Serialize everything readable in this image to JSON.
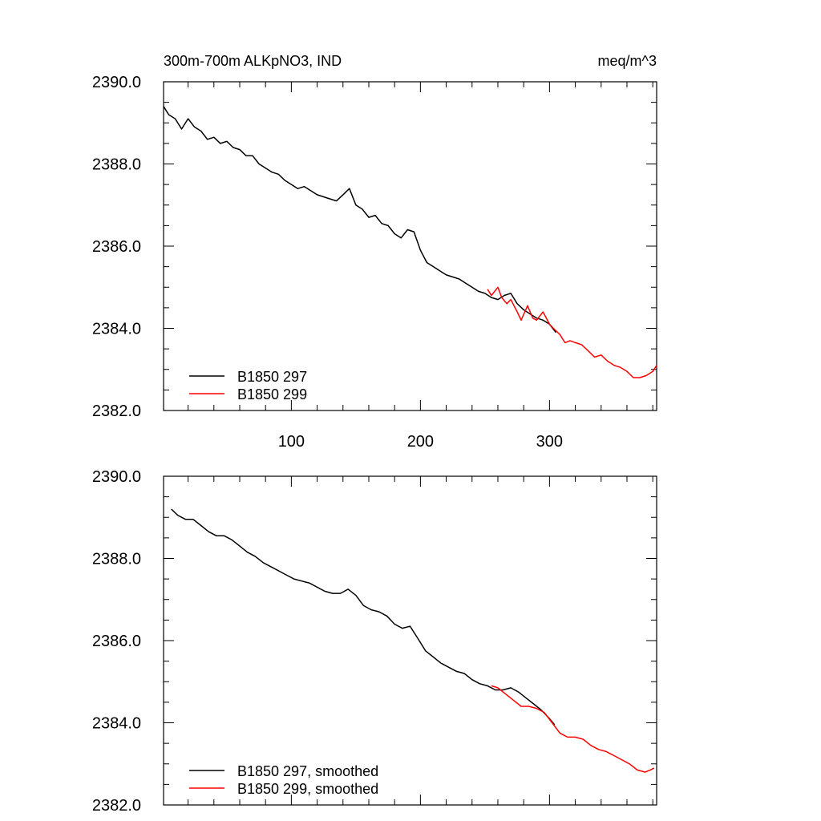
{
  "chart_data": [
    {
      "type": "line",
      "title": "300m-700m ALKpNO3, IND",
      "units": "meq/m^3",
      "xlim": [
        1,
        383
      ],
      "ylim": [
        2382,
        2390
      ],
      "xticks": [
        100,
        200,
        300
      ],
      "xtick_labels": [
        "100",
        "200",
        "300"
      ],
      "yticks": [
        2382,
        2384,
        2386,
        2388,
        2390
      ],
      "ytick_labels": [
        "2382.0",
        "2384.0",
        "2386.0",
        "2388.0",
        "2390.0"
      ],
      "legend_position": "bottom-left",
      "series": [
        {
          "name": "B1850 297",
          "color": "#000000",
          "x": [
            1,
            5,
            10,
            15,
            20,
            25,
            30,
            35,
            40,
            45,
            50,
            55,
            60,
            65,
            70,
            75,
            80,
            85,
            90,
            95,
            100,
            105,
            110,
            115,
            120,
            125,
            130,
            135,
            140,
            145,
            150,
            155,
            160,
            165,
            170,
            175,
            180,
            185,
            190,
            195,
            200,
            205,
            210,
            215,
            220,
            225,
            230,
            235,
            240,
            245,
            250,
            255,
            260,
            265,
            270,
            275,
            280,
            285,
            290,
            295,
            300,
            305
          ],
          "values": [
            2389.4,
            2389.2,
            2389.1,
            2388.85,
            2389.1,
            2388.9,
            2388.8,
            2388.6,
            2388.65,
            2388.5,
            2388.55,
            2388.4,
            2388.35,
            2388.2,
            2388.2,
            2388.0,
            2387.9,
            2387.8,
            2387.75,
            2387.6,
            2387.5,
            2387.4,
            2387.45,
            2387.35,
            2387.25,
            2387.2,
            2387.15,
            2387.1,
            2387.25,
            2387.4,
            2387.0,
            2386.9,
            2386.7,
            2386.75,
            2386.55,
            2386.5,
            2386.3,
            2386.2,
            2386.4,
            2386.35,
            2385.9,
            2385.6,
            2385.5,
            2385.4,
            2385.3,
            2385.25,
            2385.2,
            2385.1,
            2385.0,
            2384.9,
            2384.85,
            2384.75,
            2384.7,
            2384.8,
            2384.85,
            2384.6,
            2384.45,
            2384.35,
            2384.25,
            2384.2,
            2384.1,
            2383.9
          ]
        },
        {
          "name": "B1850 299",
          "color": "#ff0000",
          "x": [
            252,
            255,
            260,
            263,
            267,
            270,
            275,
            278,
            283,
            287,
            290,
            295,
            300,
            303,
            308,
            312,
            316,
            320,
            325,
            330,
            335,
            340,
            345,
            350,
            355,
            360,
            365,
            370,
            375,
            380,
            383
          ],
          "values": [
            2384.95,
            2384.8,
            2385.0,
            2384.75,
            2384.6,
            2384.7,
            2384.4,
            2384.2,
            2384.55,
            2384.25,
            2384.2,
            2384.4,
            2384.1,
            2384.0,
            2383.85,
            2383.65,
            2383.7,
            2383.65,
            2383.6,
            2383.45,
            2383.3,
            2383.35,
            2383.2,
            2383.1,
            2383.05,
            2382.95,
            2382.8,
            2382.8,
            2382.85,
            2382.95,
            2383.1
          ]
        }
      ]
    },
    {
      "type": "line",
      "title": "",
      "xlim": [
        1,
        383
      ],
      "ylim": [
        2382,
        2390
      ],
      "xticks": [
        100,
        200,
        300
      ],
      "xtick_labels": [],
      "yticks": [
        2382,
        2384,
        2386,
        2388,
        2390
      ],
      "ytick_labels": [
        "2382.0",
        "2384.0",
        "2386.0",
        "2388.0",
        "2390.0"
      ],
      "legend_position": "bottom-left",
      "series": [
        {
          "name": "B1850 297, smoothed",
          "color": "#000000",
          "x": [
            7,
            12,
            18,
            24,
            30,
            36,
            42,
            48,
            54,
            60,
            66,
            72,
            78,
            84,
            90,
            96,
            102,
            108,
            114,
            120,
            126,
            132,
            138,
            144,
            150,
            156,
            162,
            168,
            174,
            180,
            186,
            192,
            198,
            204,
            210,
            216,
            222,
            228,
            234,
            240,
            246,
            252,
            258,
            264,
            270,
            276,
            282,
            288,
            294,
            300,
            304
          ],
          "values": [
            2389.2,
            2389.05,
            2388.95,
            2388.95,
            2388.8,
            2388.65,
            2388.55,
            2388.55,
            2388.45,
            2388.3,
            2388.15,
            2388.05,
            2387.9,
            2387.8,
            2387.7,
            2387.6,
            2387.5,
            2387.45,
            2387.4,
            2387.3,
            2387.2,
            2387.15,
            2387.15,
            2387.25,
            2387.1,
            2386.85,
            2386.75,
            2386.7,
            2386.6,
            2386.4,
            2386.3,
            2386.35,
            2386.05,
            2385.75,
            2385.6,
            2385.45,
            2385.35,
            2385.25,
            2385.2,
            2385.05,
            2384.95,
            2384.9,
            2384.8,
            2384.8,
            2384.85,
            2384.75,
            2384.6,
            2384.45,
            2384.3,
            2384.1,
            2383.95
          ]
        },
        {
          "name": "B1850 299, smoothed",
          "color": "#ff0000",
          "x": [
            255,
            260,
            266,
            272,
            278,
            284,
            290,
            296,
            302,
            308,
            314,
            320,
            326,
            332,
            338,
            344,
            350,
            356,
            362,
            368,
            374,
            378,
            381
          ],
          "values": [
            2384.9,
            2384.85,
            2384.7,
            2384.55,
            2384.4,
            2384.4,
            2384.35,
            2384.25,
            2384.0,
            2383.75,
            2383.65,
            2383.65,
            2383.6,
            2383.45,
            2383.35,
            2383.3,
            2383.2,
            2383.1,
            2383.0,
            2382.85,
            2382.8,
            2382.85,
            2382.9
          ]
        }
      ]
    }
  ]
}
